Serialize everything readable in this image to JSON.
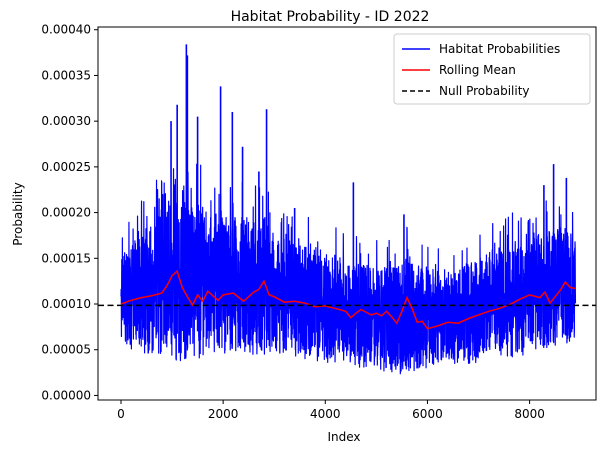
{
  "chart_data": {
    "type": "line",
    "title": "Habitat Probability - ID 2022",
    "xlabel": "Index",
    "ylabel": "Probability",
    "xlim": [
      -450,
      9300
    ],
    "ylim": [
      -5e-06,
      0.000403
    ],
    "xticks": [
      0,
      2000,
      4000,
      6000,
      8000
    ],
    "xtick_labels": [
      "0",
      "2000",
      "4000",
      "6000",
      "8000"
    ],
    "yticks": [
      0.0,
      5e-05,
      0.0001,
      0.00015,
      0.0002,
      0.00025,
      0.0003,
      0.00035,
      0.0004
    ],
    "ytick_labels": [
      "0.00000",
      "0.00005",
      "0.00010",
      "0.00015",
      "0.00020",
      "0.00025",
      "0.00030",
      "0.00035",
      "0.00040"
    ],
    "grid": false,
    "legend_position": "top-right",
    "series": [
      {
        "name": "Habitat Probabilities",
        "color": "#0000ff",
        "style": "solid",
        "description": "noisy dense signal, approx. 8900 points",
        "n_points": 8900,
        "envelope": {
          "x": [
            0,
            200,
            500,
            800,
            1000,
            1200,
            1500,
            1800,
            2000,
            2300,
            2600,
            2800,
            3000,
            3500,
            4000,
            4300,
            4600,
            5000,
            5300,
            5600,
            6000,
            6500,
            7000,
            7500,
            8000,
            8300,
            8600,
            8900
          ],
          "upper": [
            0.00015,
            0.000165,
            0.000185,
            0.0002,
            0.00021,
            0.000215,
            0.00021,
            0.0002,
            0.000195,
            0.0002,
            0.00019,
            0.0002,
            0.000175,
            0.000165,
            0.00016,
            0.00015,
            0.000145,
            0.00014,
            0.00014,
            0.00015,
            0.00014,
            0.000135,
            0.00015,
            0.000165,
            0.000175,
            0.00018,
            0.000185,
            0.00018
          ],
          "lower": [
            6.5e-05,
            5e-05,
            4.5e-05,
            4.5e-05,
            4e-05,
            3.5e-05,
            4e-05,
            4.5e-05,
            4.5e-05,
            4.5e-05,
            4.5e-05,
            4.5e-05,
            4.5e-05,
            4e-05,
            3.5e-05,
            3.5e-05,
            3e-05,
            2.5e-05,
            2.2e-05,
            2.5e-05,
            3e-05,
            3.5e-05,
            3.5e-05,
            4e-05,
            4.5e-05,
            5e-05,
            5.5e-05,
            6e-05
          ]
        },
        "spikes": [
          {
            "x": 1280,
            "y": 0.000384
          },
          {
            "x": 1300,
            "y": 0.000372
          },
          {
            "x": 1100,
            "y": 0.000318
          },
          {
            "x": 980,
            "y": 0.0003
          },
          {
            "x": 1500,
            "y": 0.000305
          },
          {
            "x": 1950,
            "y": 0.000338
          },
          {
            "x": 2180,
            "y": 0.00031
          },
          {
            "x": 2380,
            "y": 0.000272
          },
          {
            "x": 2850,
            "y": 0.000313
          },
          {
            "x": 2700,
            "y": 0.000245
          },
          {
            "x": 3400,
            "y": 0.000205
          },
          {
            "x": 4550,
            "y": 0.000233
          },
          {
            "x": 5540,
            "y": 0.000198
          },
          {
            "x": 8280,
            "y": 0.00023
          },
          {
            "x": 8470,
            "y": 0.000253
          },
          {
            "x": 8720,
            "y": 0.000238
          }
        ]
      },
      {
        "name": "Rolling Mean",
        "color": "#ff0000",
        "style": "solid",
        "x": [
          0,
          200,
          400,
          600,
          800,
          900,
          1000,
          1100,
          1200,
          1300,
          1400,
          1500,
          1600,
          1700,
          1800,
          1900,
          2000,
          2200,
          2400,
          2600,
          2700,
          2800,
          2900,
          3000,
          3200,
          3400,
          3600,
          3800,
          4000,
          4200,
          4400,
          4500,
          4600,
          4700,
          4800,
          4900,
          5000,
          5100,
          5200,
          5300,
          5400,
          5500,
          5600,
          5700,
          5800,
          5900,
          6000,
          6200,
          6400,
          6600,
          6800,
          7000,
          7200,
          7400,
          7600,
          7800,
          8000,
          8200,
          8300,
          8400,
          8500,
          8600,
          8700,
          8800,
          8900
        ],
        "y": [
          0.0001,
          0.000104,
          0.000107,
          0.000109,
          0.000112,
          0.00012,
          0.000131,
          0.000136,
          0.000118,
          0.000108,
          9.9e-05,
          0.00011,
          0.000103,
          0.000114,
          0.000109,
          0.000104,
          0.00011,
          0.000112,
          0.000103,
          0.000113,
          0.000116,
          0.000125,
          0.00011,
          0.000108,
          0.000102,
          0.000103,
          0.000101,
          9.7e-05,
          9.8e-05,
          9.5e-05,
          9.2e-05,
          8.5e-05,
          9e-05,
          9.4e-05,
          9.1e-05,
          8.8e-05,
          9e-05,
          8.7e-05,
          9.2e-05,
          8.6e-05,
          7.9e-05,
          9.2e-05,
          0.000107,
          9.5e-05,
          8e-05,
          8.1e-05,
          7.3e-05,
          7.6e-05,
          8e-05,
          7.9e-05,
          8.4e-05,
          8.8e-05,
          9.2e-05,
          9.5e-05,
          9.9e-05,
          0.000105,
          0.00011,
          0.000107,
          0.000113,
          0.000101,
          0.000108,
          0.000115,
          0.000124,
          0.000118,
          0.000117
        ]
      },
      {
        "name": "Null Probability",
        "color": "#000000",
        "style": "dashed",
        "y": 9.85e-05
      }
    ]
  }
}
